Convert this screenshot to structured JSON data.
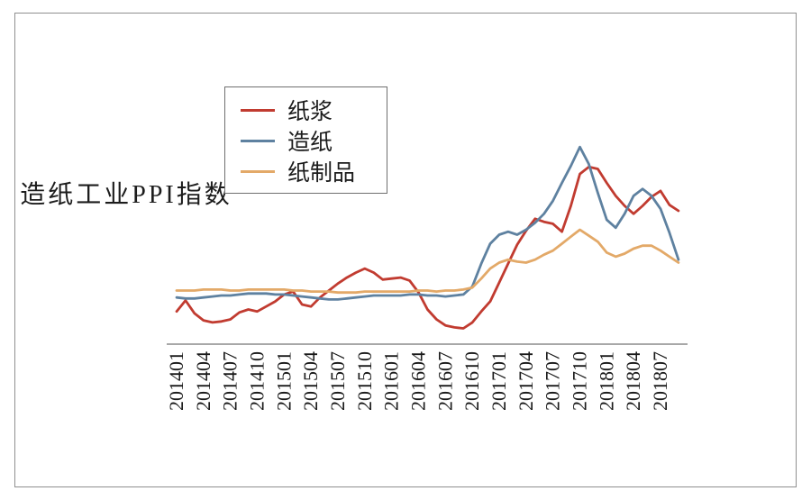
{
  "page": {
    "background": "#ffffff",
    "frame_color": "#8f8f8f"
  },
  "y_axis_label": "造纸工业PPI指数",
  "axis": {
    "color": "#8c8c8c"
  },
  "legend": {
    "position": "upper left",
    "items": [
      {
        "id": "pulp",
        "label": "纸浆",
        "color": "#c13b30"
      },
      {
        "id": "papermaking",
        "label": "造纸",
        "color": "#5e81a0"
      },
      {
        "id": "paper-products",
        "label": "纸制品",
        "color": "#e3a968"
      }
    ]
  },
  "chart_data": {
    "type": "line",
    "title": "",
    "xlabel": "",
    "ylabel": "造纸工业PPI指数",
    "grid": false,
    "legend_position": "upper left",
    "ylim": [
      95,
      116.5
    ],
    "y_axis_ticks_visible": false,
    "x": [
      "201401",
      "201402",
      "201403",
      "201404",
      "201405",
      "201406",
      "201407",
      "201408",
      "201409",
      "201410",
      "201411",
      "201412",
      "201501",
      "201502",
      "201503",
      "201504",
      "201505",
      "201506",
      "201507",
      "201508",
      "201509",
      "201510",
      "201511",
      "201512",
      "201601",
      "201602",
      "201603",
      "201604",
      "201605",
      "201606",
      "201607",
      "201608",
      "201609",
      "201610",
      "201611",
      "201612",
      "201701",
      "201702",
      "201703",
      "201704",
      "201705",
      "201706",
      "201707",
      "201708",
      "201709",
      "201710",
      "201711",
      "201712",
      "201801",
      "201802",
      "201803",
      "201804",
      "201805",
      "201806",
      "201807",
      "201808",
      "201809"
    ],
    "x_tick_labels": [
      "201401",
      "201404",
      "201407",
      "201410",
      "201501",
      "201504",
      "201507",
      "201510",
      "201601",
      "201604",
      "201607",
      "201610",
      "201701",
      "201704",
      "201707",
      "201710",
      "201801",
      "201804",
      "201807"
    ],
    "series": [
      {
        "id": "pulp",
        "name": "纸浆",
        "color": "#c13b30",
        "values": [
          98.4,
          99.5,
          98.2,
          97.5,
          97.3,
          97.4,
          97.6,
          98.3,
          98.6,
          98.4,
          98.9,
          99.4,
          100.1,
          100.4,
          99.1,
          98.9,
          99.8,
          100.5,
          101.2,
          101.8,
          102.3,
          102.7,
          102.3,
          101.6,
          101.7,
          101.8,
          101.5,
          100.3,
          98.6,
          97.6,
          97.0,
          96.8,
          96.7,
          97.3,
          98.4,
          99.4,
          101.3,
          103.2,
          105.1,
          106.5,
          107.7,
          107.4,
          107.2,
          106.4,
          109.0,
          112.2,
          112.9,
          112.7,
          111.3,
          110.0,
          109.0,
          108.2,
          109.0,
          109.9,
          110.5,
          109.1,
          108.5
        ]
      },
      {
        "id": "papermaking",
        "name": "造纸",
        "color": "#5e81a0",
        "values": [
          99.8,
          99.7,
          99.7,
          99.8,
          99.9,
          100.0,
          100.0,
          100.1,
          100.2,
          100.2,
          100.2,
          100.1,
          100.1,
          100.0,
          99.9,
          99.8,
          99.7,
          99.6,
          99.6,
          99.7,
          99.8,
          99.9,
          100.0,
          100.0,
          100.0,
          100.0,
          100.1,
          100.1,
          100.0,
          100.0,
          99.9,
          100.0,
          100.1,
          100.9,
          103.2,
          105.2,
          106.1,
          106.4,
          106.1,
          106.6,
          107.3,
          108.2,
          109.5,
          111.3,
          113.0,
          114.9,
          113.2,
          110.3,
          107.6,
          106.8,
          108.2,
          110.0,
          110.7,
          110.0,
          108.7,
          106.3,
          103.6
        ]
      },
      {
        "id": "paper-products",
        "name": "纸制品",
        "color": "#e3a968",
        "values": [
          100.5,
          100.5,
          100.5,
          100.6,
          100.6,
          100.6,
          100.5,
          100.5,
          100.6,
          100.6,
          100.6,
          100.6,
          100.6,
          100.5,
          100.5,
          100.4,
          100.4,
          100.4,
          100.3,
          100.3,
          100.3,
          100.4,
          100.4,
          100.4,
          100.4,
          100.4,
          100.4,
          100.5,
          100.5,
          100.4,
          100.5,
          100.5,
          100.6,
          100.8,
          101.7,
          102.7,
          103.3,
          103.6,
          103.4,
          103.3,
          103.6,
          104.1,
          104.5,
          105.2,
          105.9,
          106.6,
          106.0,
          105.4,
          104.3,
          103.9,
          104.2,
          104.7,
          105.0,
          105.0,
          104.5,
          103.9,
          103.3
        ]
      }
    ]
  }
}
